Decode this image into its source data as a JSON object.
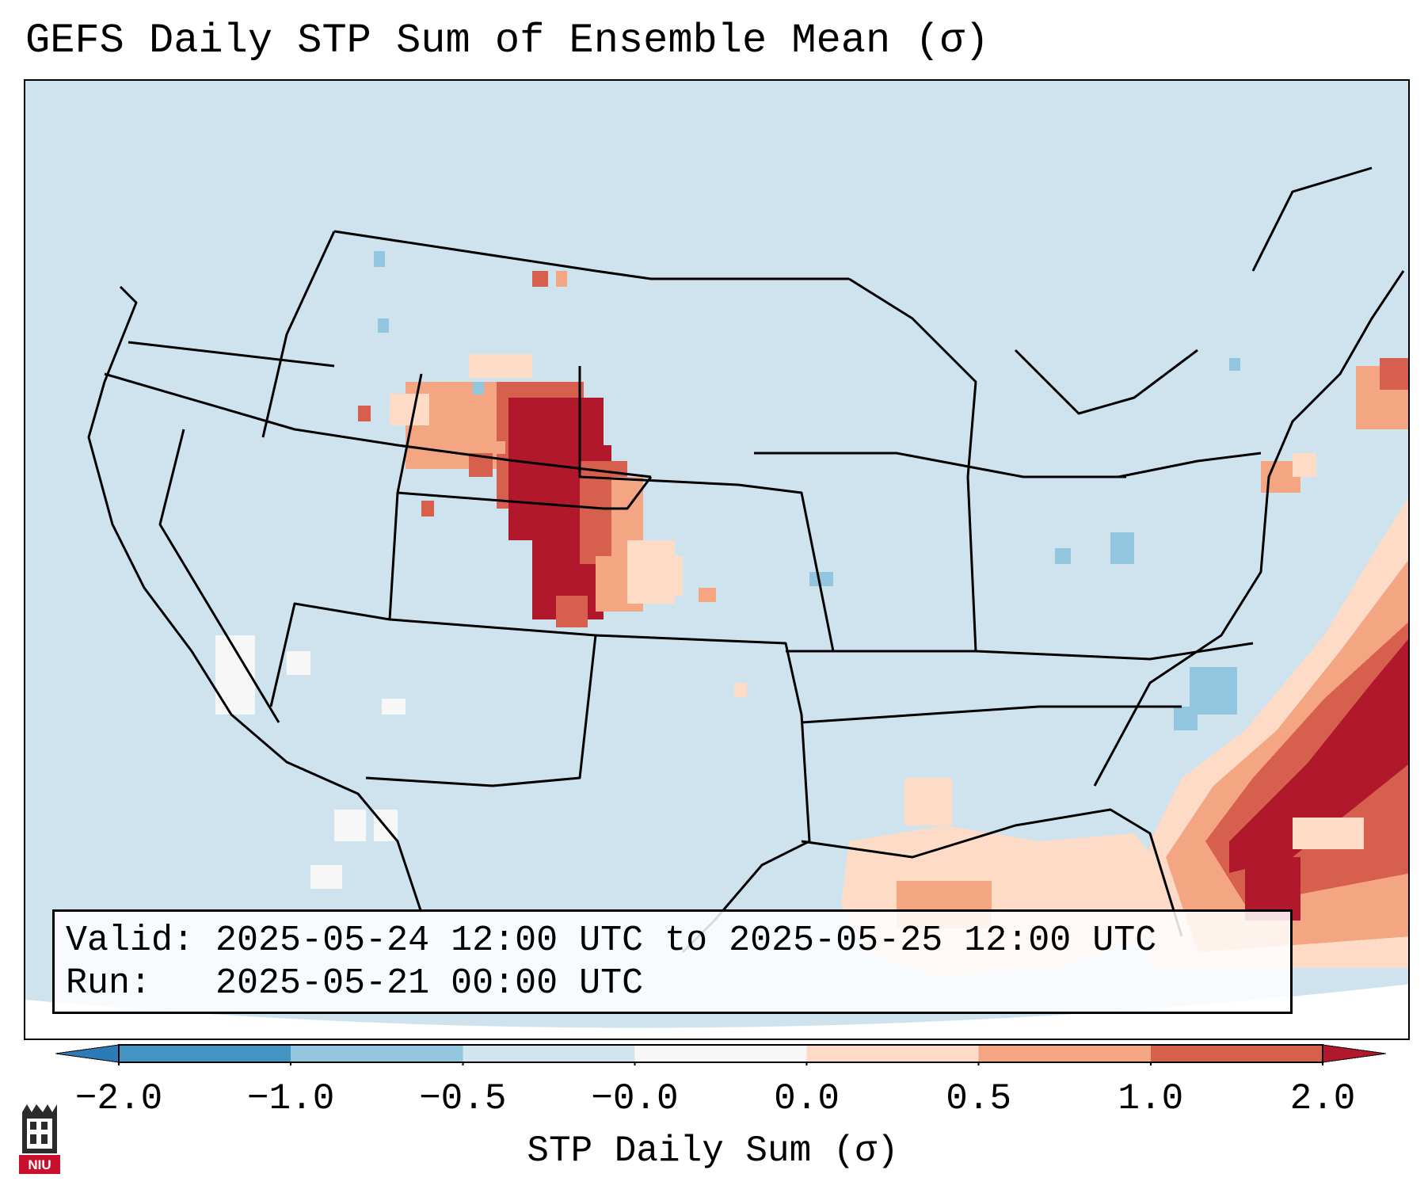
{
  "title": "GEFS Daily STP Sum of Ensemble Mean (σ)",
  "info": {
    "valid_label": "Valid:",
    "valid_value": "2025-05-24 12:00 UTC to 2025-05-25 12:00 UTC",
    "run_label": "Run:",
    "run_value": "2025-05-21 00:00 UTC"
  },
  "colorbar": {
    "label": "STP Daily Sum (σ)",
    "ticks": [
      "−2.0",
      "−1.0",
      "−0.5",
      "−0.0",
      "0.0",
      "0.5",
      "1.0",
      "2.0"
    ],
    "colors": [
      "#2c7bb6",
      "#4393c3",
      "#92c5de",
      "#d1e5f0",
      "#f7f7f7",
      "#fddbc7",
      "#f4a582",
      "#d6604d",
      "#b2182b"
    ]
  },
  "map": {
    "region": "Contiguous United States",
    "ocean_color": "#cfe3ef",
    "anomaly_regions": [
      {
        "area": "Wyoming / Nebraska / Colorado / Kansas high plains",
        "level": "≥ 2.0"
      },
      {
        "area": "Western Atlantic off the Southeast coast",
        "level": "≥ 2.0"
      },
      {
        "area": "Gulf of Mexico",
        "level": "0.0 to 1.0"
      }
    ]
  },
  "logo": {
    "text": "NIU"
  }
}
